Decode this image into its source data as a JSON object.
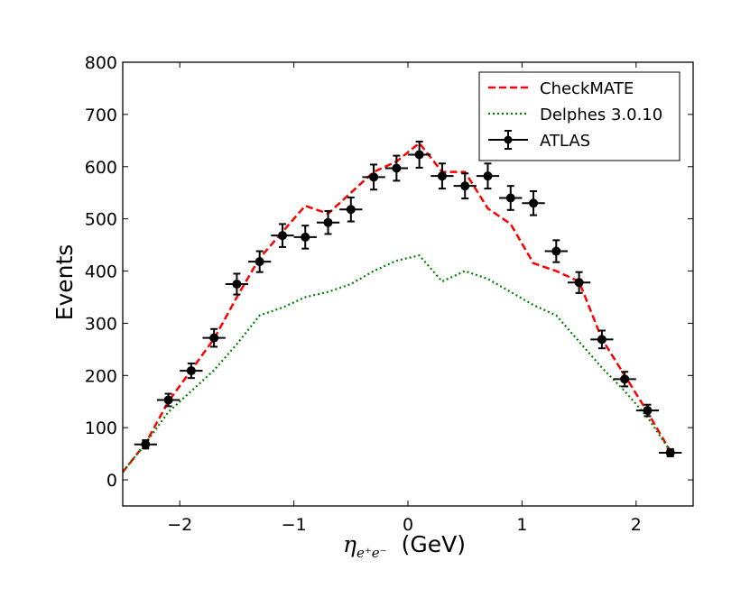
{
  "chart_data": {
    "type": "line",
    "xlabel_symbol": "η",
    "xlabel_subscript": "e⁺e⁻",
    "xlabel_unit": "(GeV)",
    "ylabel": "Events",
    "xlim": [
      -2.5,
      2.5
    ],
    "ylim": [
      -50,
      800
    ],
    "xticks": [
      -2,
      -1,
      0,
      1,
      2
    ],
    "xtick_labels": [
      "−2",
      "−1",
      "0",
      "1",
      "2"
    ],
    "yticks": [
      0,
      100,
      200,
      300,
      400,
      500,
      600,
      700,
      800
    ],
    "ytick_labels": [
      "0",
      "100",
      "200",
      "300",
      "400",
      "500",
      "600",
      "700",
      "800"
    ],
    "legend_position": "top-right",
    "series": [
      {
        "name": "CheckMATE",
        "style": "dashed",
        "color": "#ff0000",
        "x": [
          -2.5,
          -2.3,
          -2.1,
          -1.9,
          -1.7,
          -1.5,
          -1.3,
          -1.1,
          -0.9,
          -0.7,
          -0.5,
          -0.3,
          -0.1,
          0.1,
          0.3,
          0.5,
          0.7,
          0.9,
          1.1,
          1.3,
          1.5,
          1.7,
          1.9,
          2.1,
          2.3
        ],
        "values": [
          15,
          70,
          150,
          210,
          270,
          350,
          425,
          475,
          525,
          510,
          550,
          590,
          610,
          645,
          590,
          590,
          520,
          490,
          415,
          400,
          380,
          270,
          200,
          130,
          55
        ]
      },
      {
        "name": "Delphes 3.0.10",
        "style": "dotted",
        "color": "#008000",
        "x": [
          -2.5,
          -2.3,
          -2.1,
          -1.9,
          -1.7,
          -1.5,
          -1.3,
          -1.1,
          -0.9,
          -0.7,
          -0.5,
          -0.3,
          -0.1,
          0.1,
          0.3,
          0.5,
          0.7,
          0.9,
          1.1,
          1.3,
          1.5,
          1.7,
          1.9,
          2.1,
          2.3
        ],
        "values": [
          15,
          70,
          130,
          170,
          210,
          260,
          315,
          330,
          350,
          360,
          375,
          400,
          420,
          430,
          380,
          400,
          385,
          360,
          335,
          315,
          265,
          215,
          170,
          120,
          55
        ]
      },
      {
        "name": "ATLAS",
        "style": "errorbar",
        "color": "#000000",
        "xerr": 0.1,
        "x": [
          -2.3,
          -2.1,
          -1.9,
          -1.7,
          -1.5,
          -1.3,
          -1.1,
          -0.9,
          -0.7,
          -0.5,
          -0.3,
          -0.1,
          0.1,
          0.3,
          0.5,
          0.7,
          0.9,
          1.1,
          1.3,
          1.5,
          1.7,
          1.9,
          2.1,
          2.3
        ],
        "values": [
          68,
          153,
          209,
          272,
          375,
          418,
          468,
          465,
          493,
          518,
          580,
          597,
          623,
          582,
          563,
          582,
          540,
          530,
          438,
          378,
          269,
          193,
          133,
          52
        ],
        "yerr": [
          8,
          12,
          14,
          17,
          20,
          20,
          22,
          22,
          22,
          23,
          24,
          24,
          25,
          24,
          24,
          24,
          23,
          23,
          21,
          20,
          17,
          14,
          11,
          7
        ]
      }
    ]
  }
}
